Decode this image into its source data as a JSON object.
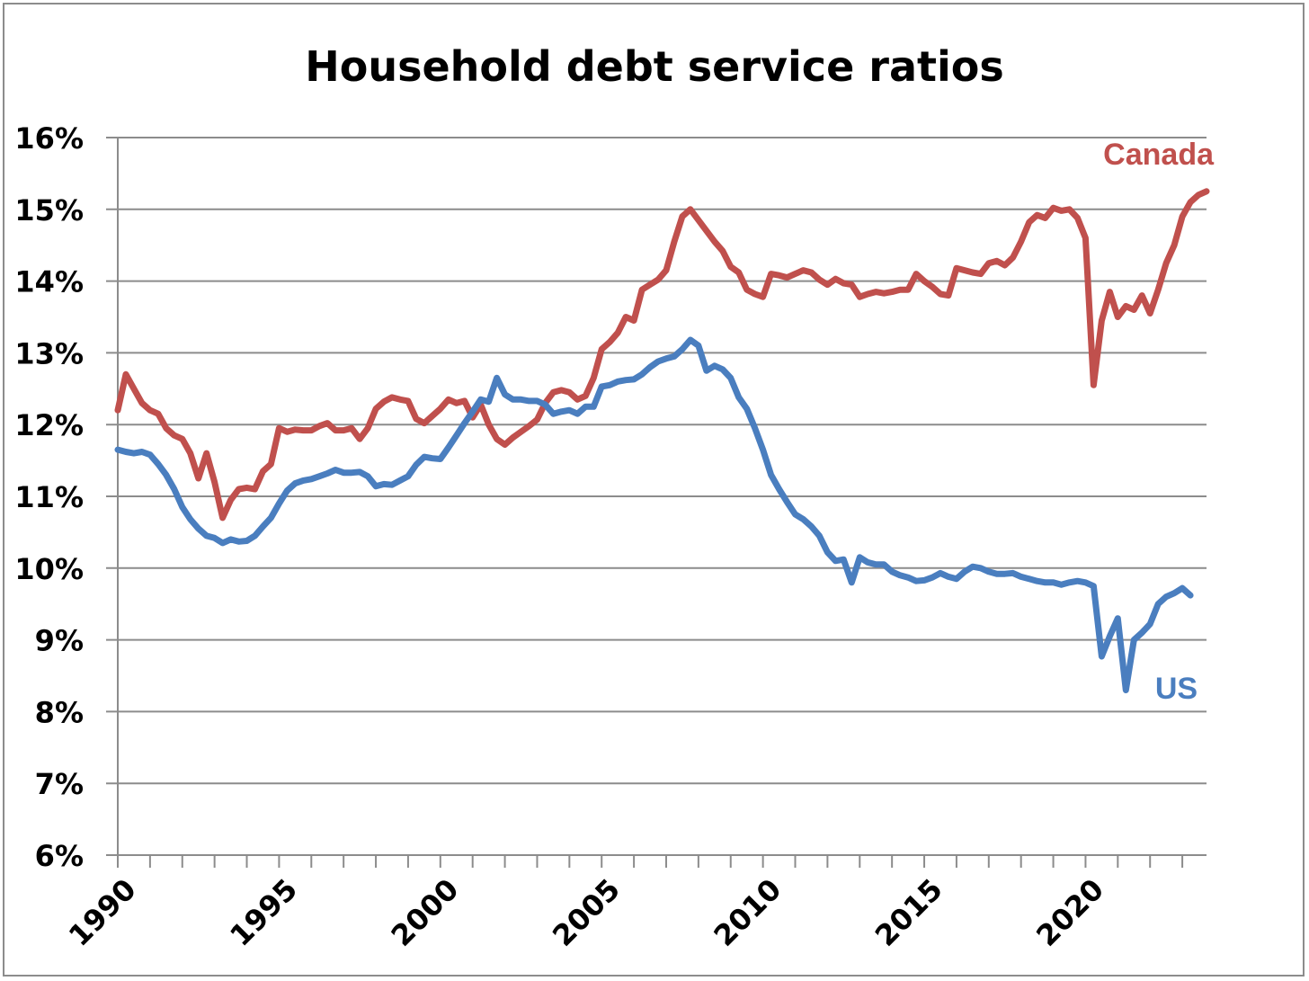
{
  "chart_data": {
    "type": "line",
    "title": "Household debt service ratios",
    "xlabel": "",
    "ylabel": "",
    "ylim": [
      6,
      16
    ],
    "xlim": [
      1990,
      2023.75
    ],
    "y_tick_labels": [
      "6%",
      "7%",
      "8%",
      "9%",
      "10%",
      "11%",
      "12%",
      "13%",
      "14%",
      "15%",
      "16%"
    ],
    "x_tick_labels": [
      "1990",
      "1995",
      "2000",
      "2005",
      "2010",
      "2015",
      "2020"
    ],
    "grid": "horizontal",
    "legend": "none",
    "series": [
      {
        "name": "Canada",
        "color": "#c0504d",
        "label_placement": "end-above",
        "x": [
          1990,
          1990.25,
          1990.5,
          1990.75,
          1991,
          1991.25,
          1991.5,
          1991.75,
          1992,
          1992.25,
          1992.5,
          1992.75,
          1993,
          1993.25,
          1993.5,
          1993.75,
          1994,
          1994.25,
          1994.5,
          1994.75,
          1995,
          1995.25,
          1995.5,
          1995.75,
          1996,
          1996.25,
          1996.5,
          1996.75,
          1997,
          1997.25,
          1997.5,
          1997.75,
          1998,
          1998.25,
          1998.5,
          1998.75,
          1999,
          1999.25,
          1999.5,
          1999.75,
          2000,
          2000.25,
          2000.5,
          2000.75,
          2001,
          2001.25,
          2001.5,
          2001.75,
          2002,
          2002.25,
          2002.5,
          2002.75,
          2003,
          2003.25,
          2003.5,
          2003.75,
          2004,
          2004.25,
          2004.5,
          2004.75,
          2005,
          2005.25,
          2005.5,
          2005.75,
          2006,
          2006.25,
          2006.5,
          2006.75,
          2007,
          2007.25,
          2007.5,
          2007.75,
          2008,
          2008.25,
          2008.5,
          2008.75,
          2009,
          2009.25,
          2009.5,
          2009.75,
          2010,
          2010.25,
          2010.5,
          2010.75,
          2011,
          2011.25,
          2011.5,
          2011.75,
          2012,
          2012.25,
          2012.5,
          2012.75,
          2013,
          2013.25,
          2013.5,
          2013.75,
          2014,
          2014.25,
          2014.5,
          2014.75,
          2015,
          2015.25,
          2015.5,
          2015.75,
          2016,
          2016.25,
          2016.5,
          2016.75,
          2017,
          2017.25,
          2017.5,
          2017.75,
          2018,
          2018.25,
          2018.5,
          2018.75,
          2019,
          2019.25,
          2019.5,
          2019.75,
          2020,
          2020.25,
          2020.5,
          2020.75,
          2021,
          2021.25,
          2021.5,
          2021.75,
          2022,
          2022.25,
          2022.5,
          2022.75,
          2023,
          2023.25,
          2023.5,
          2023.75
        ],
        "values": [
          12.2,
          12.7,
          12.5,
          12.3,
          12.2,
          12.15,
          11.95,
          11.85,
          11.8,
          11.6,
          11.25,
          11.6,
          11.2,
          10.7,
          10.95,
          11.1,
          11.12,
          11.1,
          11.35,
          11.45,
          11.95,
          11.9,
          11.93,
          11.92,
          11.92,
          11.98,
          12.02,
          11.92,
          11.92,
          11.95,
          11.8,
          11.95,
          12.22,
          12.32,
          12.38,
          12.35,
          12.33,
          12.08,
          12.02,
          12.12,
          12.22,
          12.35,
          12.3,
          12.33,
          12.1,
          12.28,
          12.0,
          11.8,
          11.72,
          11.82,
          11.9,
          11.98,
          12.07,
          12.3,
          12.45,
          12.48,
          12.45,
          12.35,
          12.4,
          12.65,
          13.05,
          13.15,
          13.28,
          13.5,
          13.45,
          13.88,
          13.95,
          14.02,
          14.15,
          14.55,
          14.9,
          15.0,
          14.85,
          14.7,
          14.55,
          14.42,
          14.2,
          14.12,
          13.88,
          13.82,
          13.78,
          14.1,
          14.08,
          14.05,
          14.1,
          14.15,
          14.12,
          14.02,
          13.95,
          14.03,
          13.97,
          13.95,
          13.78,
          13.82,
          13.85,
          13.83,
          13.85,
          13.88,
          13.88,
          14.1,
          14.0,
          13.92,
          13.82,
          13.8,
          14.18,
          14.15,
          14.12,
          14.1,
          14.25,
          14.28,
          14.22,
          14.33,
          14.55,
          14.82,
          14.92,
          14.88,
          15.02,
          14.98,
          15.0,
          14.88,
          14.6,
          12.55,
          13.45,
          13.85,
          13.5,
          13.65,
          13.6,
          13.8,
          13.55,
          13.88,
          14.25,
          14.5,
          14.9,
          15.1,
          15.2,
          15.25
        ]
      },
      {
        "name": "US",
        "color": "#4a7ebf",
        "label_placement": "end-below",
        "x": [
          1990,
          1990.25,
          1990.5,
          1990.75,
          1991,
          1991.25,
          1991.5,
          1991.75,
          1992,
          1992.25,
          1992.5,
          1992.75,
          1993,
          1993.25,
          1993.5,
          1993.75,
          1994,
          1994.25,
          1994.5,
          1994.75,
          1995,
          1995.25,
          1995.5,
          1995.75,
          1996,
          1996.25,
          1996.5,
          1996.75,
          1997,
          1997.25,
          1997.5,
          1997.75,
          1998,
          1998.25,
          1998.5,
          1998.75,
          1999,
          1999.25,
          1999.5,
          1999.75,
          2000,
          2000.25,
          2000.5,
          2000.75,
          2001,
          2001.25,
          2001.5,
          2001.75,
          2002,
          2002.25,
          2002.5,
          2002.75,
          2003,
          2003.25,
          2003.5,
          2003.75,
          2004,
          2004.25,
          2004.5,
          2004.75,
          2005,
          2005.25,
          2005.5,
          2005.75,
          2006,
          2006.25,
          2006.5,
          2006.75,
          2007,
          2007.25,
          2007.5,
          2007.75,
          2008,
          2008.25,
          2008.5,
          2008.75,
          2009,
          2009.25,
          2009.5,
          2009.75,
          2010,
          2010.25,
          2010.5,
          2010.75,
          2011,
          2011.25,
          2011.5,
          2011.75,
          2012,
          2012.25,
          2012.5,
          2012.75,
          2013,
          2013.25,
          2013.5,
          2013.75,
          2014,
          2014.25,
          2014.5,
          2014.75,
          2015,
          2015.25,
          2015.5,
          2015.75,
          2016,
          2016.25,
          2016.5,
          2016.75,
          2017,
          2017.25,
          2017.5,
          2017.75,
          2018,
          2018.25,
          2018.5,
          2018.75,
          2019,
          2019.25,
          2019.5,
          2019.75,
          2020,
          2020.25,
          2020.5,
          2020.75,
          2021,
          2021.25,
          2021.5,
          2021.75,
          2022,
          2022.25,
          2022.5,
          2022.75,
          2023,
          2023.25
        ],
        "values": [
          11.65,
          11.62,
          11.6,
          11.62,
          11.58,
          11.45,
          11.3,
          11.1,
          10.85,
          10.68,
          10.55,
          10.45,
          10.42,
          10.35,
          10.4,
          10.37,
          10.38,
          10.45,
          10.58,
          10.7,
          10.9,
          11.08,
          11.18,
          11.22,
          11.24,
          11.28,
          11.32,
          11.37,
          11.33,
          11.33,
          11.34,
          11.28,
          11.14,
          11.17,
          11.16,
          11.22,
          11.28,
          11.44,
          11.55,
          11.53,
          11.52,
          11.68,
          11.85,
          12.02,
          12.18,
          12.35,
          12.32,
          12.65,
          12.42,
          12.35,
          12.35,
          12.33,
          12.33,
          12.28,
          12.15,
          12.18,
          12.2,
          12.15,
          12.25,
          12.25,
          12.53,
          12.55,
          12.6,
          12.62,
          12.63,
          12.7,
          12.8,
          12.88,
          12.92,
          12.95,
          13.05,
          13.18,
          13.1,
          12.75,
          12.82,
          12.77,
          12.65,
          12.38,
          12.22,
          11.95,
          11.65,
          11.3,
          11.1,
          10.92,
          10.75,
          10.68,
          10.58,
          10.45,
          10.22,
          10.1,
          10.12,
          9.8,
          10.15,
          10.08,
          10.05,
          10.05,
          9.95,
          9.9,
          9.87,
          9.82,
          9.83,
          9.87,
          9.93,
          9.88,
          9.85,
          9.95,
          10.02,
          10.0,
          9.95,
          9.92,
          9.92,
          9.93,
          9.88,
          9.85,
          9.82,
          9.8,
          9.8,
          9.77,
          9.8,
          9.82,
          9.8,
          9.75,
          8.77,
          9.05,
          9.3,
          8.3,
          9.0,
          9.1,
          9.22,
          9.5,
          9.6,
          9.65,
          9.72,
          9.62
        ]
      }
    ]
  }
}
